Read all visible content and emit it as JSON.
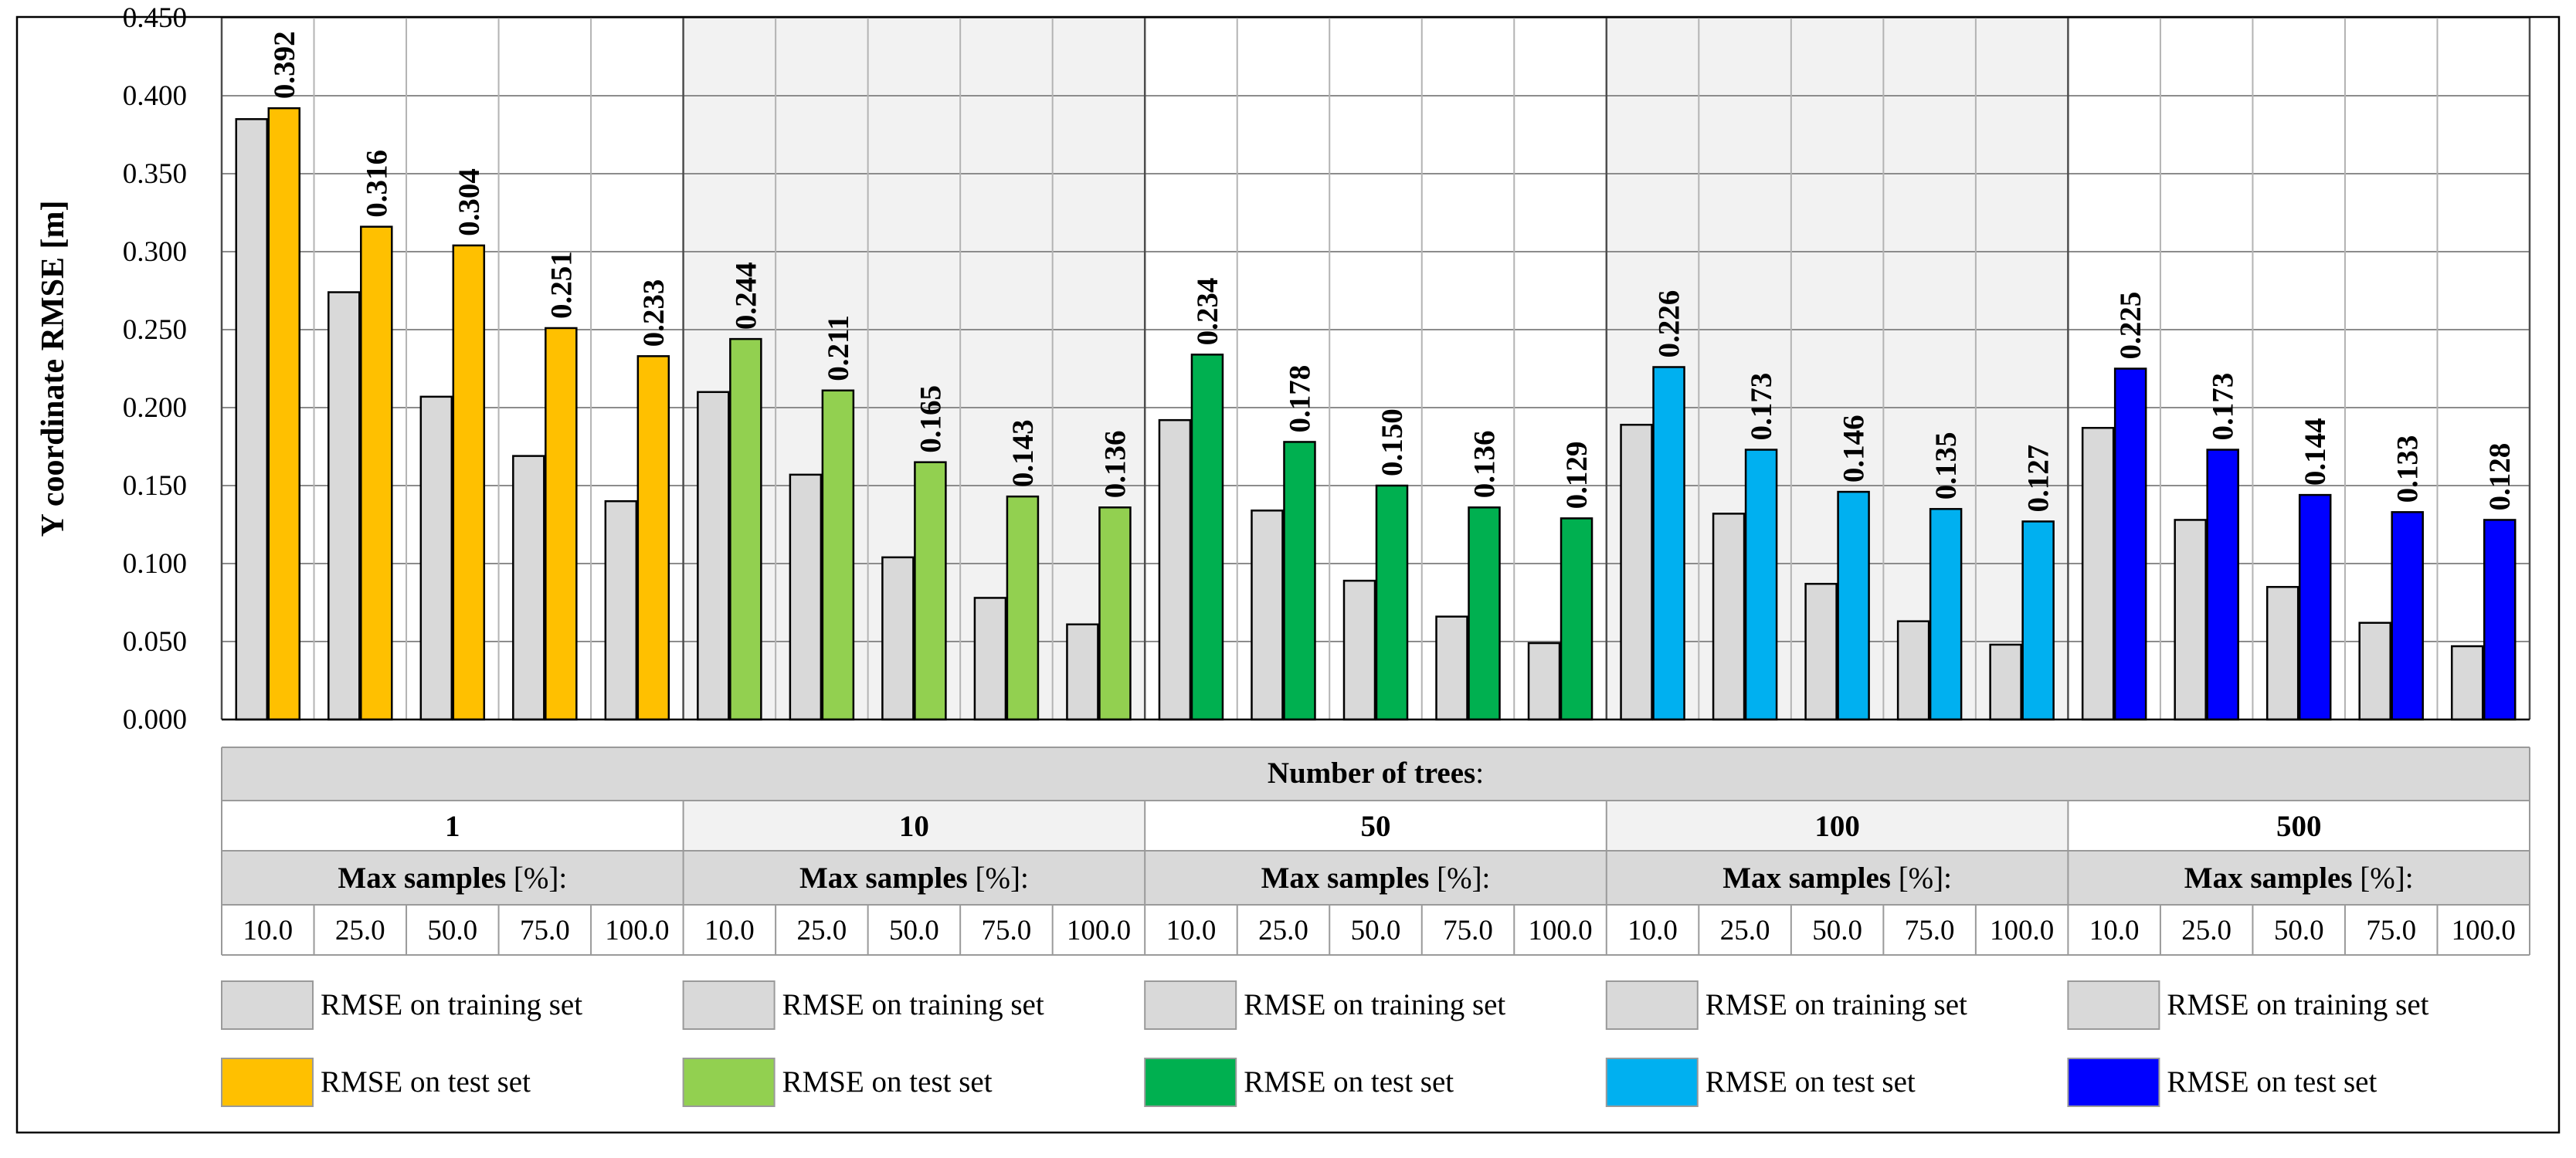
{
  "chart_data": {
    "type": "bar",
    "ylabel": "Y coordinate RMSE [m]",
    "ylim": [
      0,
      0.45
    ],
    "yticks": [
      "0.000",
      "0.050",
      "0.100",
      "0.150",
      "0.200",
      "0.250",
      "0.300",
      "0.350",
      "0.400",
      "0.450"
    ],
    "grid": true,
    "group_axis_title_bold": "Number of trees",
    "group_axis_title_suffix": ":",
    "sub_axis_title_bold": "Max samples",
    "sub_axis_title_suffix": " [%]:",
    "categories": [
      "10.0",
      "25.0",
      "50.0",
      "75.0",
      "100.0"
    ],
    "groups": [
      {
        "name": "1",
        "test_color": "#FFC000",
        "train_values": [
          0.385,
          0.274,
          0.207,
          0.169,
          0.14
        ],
        "test_values": [
          0.392,
          0.316,
          0.304,
          0.251,
          0.233
        ],
        "test_labels": [
          "0.392",
          "0.316",
          "0.304",
          "0.251",
          "0.233"
        ]
      },
      {
        "name": "10",
        "test_color": "#92D050",
        "train_values": [
          0.21,
          0.157,
          0.104,
          0.078,
          0.061
        ],
        "test_values": [
          0.244,
          0.211,
          0.165,
          0.143,
          0.136
        ],
        "test_labels": [
          "0.244",
          "0.211",
          "0.165",
          "0.143",
          "0.136"
        ]
      },
      {
        "name": "50",
        "test_color": "#00B050",
        "train_values": [
          0.192,
          0.134,
          0.089,
          0.066,
          0.049
        ],
        "test_values": [
          0.234,
          0.178,
          0.15,
          0.136,
          0.129
        ],
        "test_labels": [
          "0.234",
          "0.178",
          "0.150",
          "0.136",
          "0.129"
        ]
      },
      {
        "name": "100",
        "test_color": "#00B0F0",
        "train_values": [
          0.189,
          0.132,
          0.087,
          0.063,
          0.048
        ],
        "test_values": [
          0.226,
          0.173,
          0.146,
          0.135,
          0.127
        ],
        "test_labels": [
          "0.226",
          "0.173",
          "0.146",
          "0.135",
          "0.127"
        ]
      },
      {
        "name": "500",
        "test_color": "#0000FF",
        "train_values": [
          0.187,
          0.128,
          0.085,
          0.062,
          0.047
        ],
        "test_values": [
          0.225,
          0.173,
          0.144,
          0.133,
          0.128
        ],
        "test_labels": [
          "0.225",
          "0.173",
          "0.144",
          "0.133",
          "0.128"
        ]
      }
    ],
    "train_color": "#D9D9D9",
    "shaded_group_bg": "#F2F2F2",
    "header_bg": "#D9D9D9",
    "legend": {
      "train_label": "RMSE on training set",
      "test_label": "RMSE on test set"
    }
  }
}
